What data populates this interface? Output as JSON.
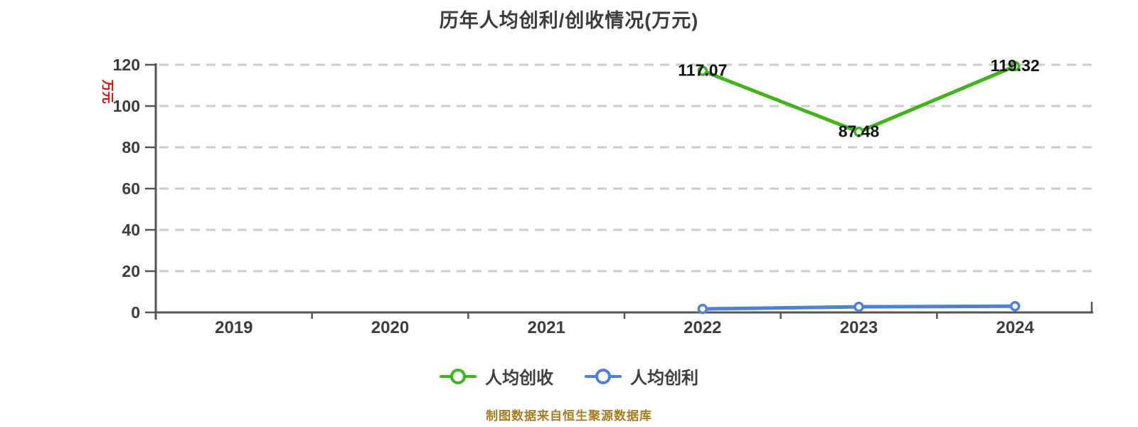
{
  "chart_data": {
    "type": "line",
    "title": "历年人均创利/创收情况(万元)",
    "y_axis": {
      "unit_label": "万元",
      "min": 0,
      "max": 120,
      "tick_step": 20,
      "tick_labels": [
        "0",
        "20",
        "40",
        "60",
        "80",
        "100",
        "120"
      ]
    },
    "x_axis": {
      "categories": [
        "2019",
        "2020",
        "2021",
        "2022",
        "2023",
        "2024"
      ]
    },
    "grid": {
      "style": "horizontal-dashed",
      "color": "#cccccc"
    },
    "legend_position": "bottom-center",
    "series": [
      {
        "name": "人均创收",
        "color": "#3fb618",
        "show_labels": true,
        "points": [
          {
            "x": "2022",
            "y": 117.07,
            "label": "117.07"
          },
          {
            "x": "2023",
            "y": 87.48,
            "label": "87.48"
          },
          {
            "x": "2024",
            "y": 119.32,
            "label": "119.32"
          }
        ]
      },
      {
        "name": "人均创利",
        "color": "#4d80d8",
        "show_labels": false,
        "points": [
          {
            "x": "2022",
            "y": 1.7
          },
          {
            "x": "2023",
            "y": 2.7
          },
          {
            "x": "2024",
            "y": 3.0
          }
        ]
      }
    ],
    "colors": {
      "axis": "#555555",
      "tick_text": "#3d3d3d",
      "data_label": "#111111",
      "unit_label": "#e60000",
      "footnote": "#a87d1e"
    },
    "footnote": "制图数据来自恒生聚源数据库"
  }
}
